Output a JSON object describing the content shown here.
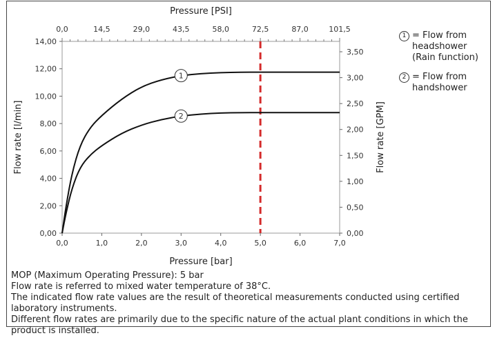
{
  "chart_data": {
    "type": "line",
    "xlabel": "Pressure [bar]",
    "x2label": "Pressure [PSI]",
    "ylabel": "Flow rate [l/min]",
    "y2label": "Flow rate [GPM]",
    "xlim": [
      0,
      7
    ],
    "ylim": [
      0,
      14
    ],
    "x2lim": [
      0,
      101.5
    ],
    "y2lim": [
      0,
      3.7
    ],
    "x_ticks": [
      "0,0",
      "1,0",
      "2,0",
      "3,0",
      "4,0",
      "5,0",
      "6,0",
      "7,0"
    ],
    "y_ticks": [
      "0,00",
      "2,00",
      "4,00",
      "6,00",
      "8,00",
      "10,00",
      "12,00",
      "14,00"
    ],
    "x2_ticks": [
      "0,0",
      "14,5",
      "29,0",
      "43,5",
      "58,0",
      "72,5",
      "87,0",
      "101,5"
    ],
    "y2_ticks": [
      "0,00",
      "0,50",
      "1,00",
      "1,50",
      "2,00",
      "2,50",
      "3,00",
      "3,50"
    ],
    "grid": false,
    "legend_position": "top-right",
    "series": [
      {
        "marker": "1",
        "color": "#111111",
        "x": [
          0,
          0.1,
          0.25,
          0.45,
          0.7,
          1.0,
          1.5,
          2.0,
          2.5,
          3.0,
          3.5,
          4.0,
          4.5,
          5.0,
          6.0,
          7.0
        ],
        "y": [
          0,
          2.0,
          4.4,
          6.4,
          7.7,
          8.6,
          9.8,
          10.7,
          11.2,
          11.5,
          11.65,
          11.72,
          11.75,
          11.75,
          11.75,
          11.75
        ]
      },
      {
        "marker": "2",
        "color": "#111111",
        "x": [
          0,
          0.1,
          0.25,
          0.45,
          0.7,
          1.0,
          1.5,
          2.0,
          2.5,
          3.0,
          3.5,
          4.0,
          4.5,
          5.0,
          6.0,
          7.0
        ],
        "y": [
          0,
          1.5,
          3.3,
          4.8,
          5.7,
          6.4,
          7.3,
          7.9,
          8.3,
          8.55,
          8.7,
          8.78,
          8.8,
          8.8,
          8.8,
          8.8
        ]
      }
    ],
    "mop_line": {
      "x": 5.0,
      "color": "#d42a2a"
    }
  },
  "legend": [
    {
      "marker": "1",
      "text": "= Flow from headshower (Rain function)"
    },
    {
      "marker": "2",
      "text": "= Flow from handshower"
    }
  ],
  "notes": [
    "MOP (Maximum Operating Pressure): 5 bar",
    "Flow rate is referred to mixed water temperature of 38°C.",
    "The indicated flow rate values are the result of theoretical measurements conducted using certified laboratory instruments.",
    "Different flow rates are primarily due to the specific nature of the actual plant conditions in which the product is installed."
  ]
}
